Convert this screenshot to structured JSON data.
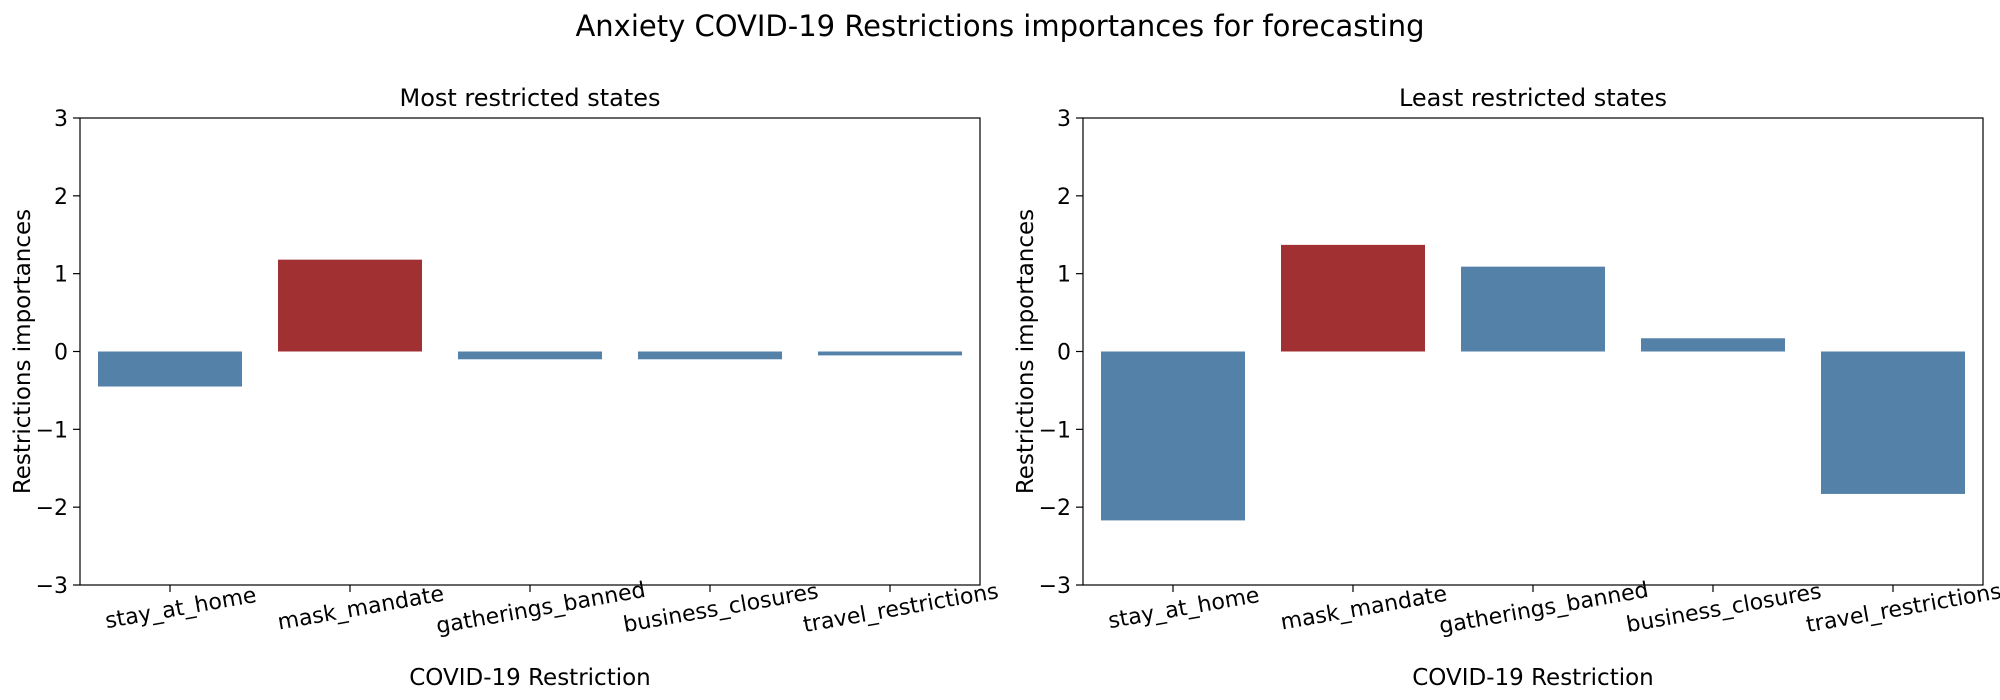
{
  "title": "Anxiety COVID-19 Restrictions importances for forecasting",
  "chart_data": [
    {
      "type": "bar",
      "title": "Most restricted states",
      "xlabel": "COVID-19 Restriction",
      "ylabel": "Restrictions importances",
      "categories": [
        "stay_at_home",
        "mask_mandate",
        "gatherings_banned",
        "business_closures",
        "travel_restrictions"
      ],
      "values": [
        -0.45,
        1.18,
        -0.1,
        -0.1,
        -0.05
      ],
      "colors": [
        "#5381a8",
        "#a13032",
        "#5381a8",
        "#5381a8",
        "#5381a8"
      ],
      "ylim": [
        -3,
        3
      ],
      "yticks": [
        "−3",
        "−2",
        "−1",
        "0",
        "1",
        "2",
        "3"
      ],
      "grid": false,
      "legend": "none"
    },
    {
      "type": "bar",
      "title": "Least restricted states",
      "xlabel": "COVID-19 Restriction",
      "ylabel": "Restrictions importances",
      "categories": [
        "stay_at_home",
        "mask_mandate",
        "gatherings_banned",
        "business_closures",
        "travel_restrictions"
      ],
      "values": [
        -2.17,
        1.37,
        1.09,
        0.17,
        -1.83
      ],
      "colors": [
        "#5381a8",
        "#a13032",
        "#5381a8",
        "#5381a8",
        "#5381a8"
      ],
      "ylim": [
        -3,
        3
      ],
      "yticks": [
        "−3",
        "−2",
        "−1",
        "0",
        "1",
        "2",
        "3"
      ],
      "grid": false,
      "legend": "none"
    }
  ]
}
